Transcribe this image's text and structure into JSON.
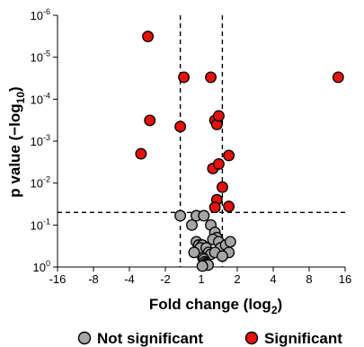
{
  "chart_data": {
    "type": "scatter",
    "title": "",
    "xlabel": "Fold change (log",
    "xlabel_sub": "2",
    "xlabel_suffix": ")",
    "ylabel": "p value (−log",
    "ylabel_sub": "10",
    "ylabel_suffix": ")",
    "x_axis_scale": "log2-symmetric (fold change)",
    "xlim": [
      -16,
      16
    ],
    "x_ticks": [
      -16,
      -8,
      -4,
      -2,
      1,
      2,
      4,
      8,
      16
    ],
    "x_tick_labels": [
      "-16",
      "-8",
      "-4",
      "-2",
      "1",
      "2",
      "4",
      "8",
      "16"
    ],
    "y_axis_scale": "log, inverted",
    "ylim": [
      1,
      1e-06
    ],
    "y_ticks": [
      1,
      0.1,
      0.01,
      0.001,
      0.0001,
      1e-05,
      1e-06
    ],
    "y_tick_labels": [
      {
        "base": "10",
        "exp": "0"
      },
      {
        "base": "10",
        "exp": "-1"
      },
      {
        "base": "10",
        "exp": "-2"
      },
      {
        "base": "10",
        "exp": "-3"
      },
      {
        "base": "10",
        "exp": "-4"
      },
      {
        "base": "10",
        "exp": "-5"
      },
      {
        "base": "10",
        "exp": "-6"
      }
    ],
    "thresholds": {
      "fold_change_low": -1.5,
      "fold_change_high": 1.5,
      "p_value": 0.05
    },
    "grid": false,
    "legend_position": "bottom",
    "colors": {
      "not_significant": "#a6a6a6",
      "significant": "#e3120b",
      "outline": "#000000"
    },
    "series": [
      {
        "name": "Not significant",
        "color": "#a6a6a6",
        "points": [
          [
            -1.5,
            0.06
          ],
          [
            -1.2,
            0.1
          ],
          [
            -1.1,
            0.06
          ],
          [
            1.05,
            0.06
          ],
          [
            1.2,
            0.1
          ],
          [
            1.3,
            0.15
          ],
          [
            1.35,
            0.2
          ],
          [
            1.25,
            0.22
          ],
          [
            1.4,
            0.25
          ],
          [
            1.45,
            0.35
          ],
          [
            1.6,
            0.3
          ],
          [
            1.7,
            0.45
          ],
          [
            1.75,
            0.25
          ],
          [
            -1.1,
            0.25
          ],
          [
            -1.05,
            0.3
          ],
          [
            1.02,
            0.3
          ],
          [
            1.08,
            0.4
          ],
          [
            -1.02,
            0.35
          ],
          [
            1.1,
            0.35
          ],
          [
            1.15,
            0.45
          ],
          [
            1.2,
            0.5
          ],
          [
            1.3,
            0.45
          ],
          [
            1.5,
            0.55
          ],
          [
            -1.15,
            0.45
          ],
          [
            1.03,
            0.6
          ],
          [
            1.05,
            0.65
          ],
          [
            1.07,
            0.75
          ],
          [
            1.1,
            0.8
          ],
          [
            1.12,
            0.85
          ],
          [
            1.14,
            0.9
          ],
          [
            1.02,
            0.95
          ]
        ]
      },
      {
        "name": "Significant",
        "color": "#e3120b",
        "points": [
          [
            -2.8,
            3.2e-06
          ],
          [
            -1.4,
            3e-05
          ],
          [
            1.2,
            3e-05
          ],
          [
            14,
            3e-05
          ],
          [
            -2.7,
            0.00032
          ],
          [
            -1.5,
            0.00045
          ],
          [
            1.3,
            0.00032
          ],
          [
            1.35,
            0.0004
          ],
          [
            1.4,
            0.00025
          ],
          [
            -3.2,
            0.002
          ],
          [
            1.25,
            0.0045
          ],
          [
            1.4,
            0.0035
          ],
          [
            1.7,
            0.0022
          ],
          [
            1.5,
            0.0125
          ],
          [
            1.35,
            0.025
          ],
          [
            1.3,
            0.038
          ],
          [
            1.7,
            0.036
          ]
        ]
      }
    ]
  }
}
